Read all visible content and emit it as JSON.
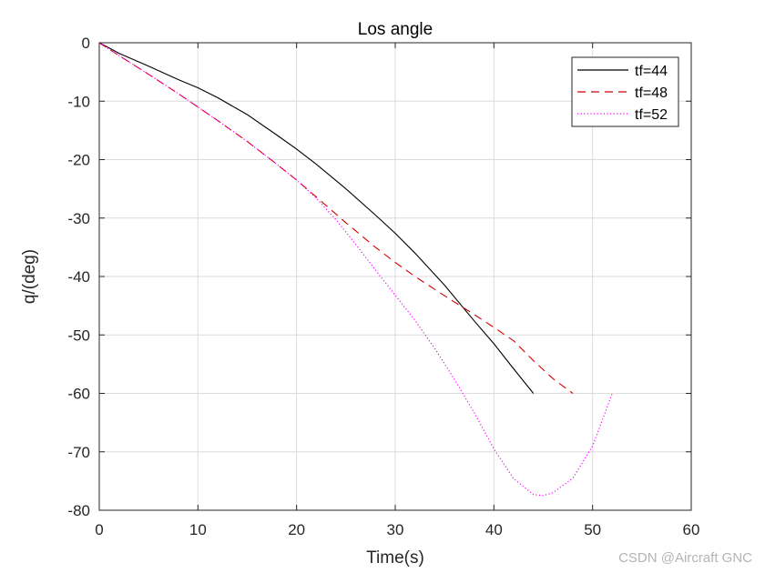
{
  "figure": {
    "title": "Los angle",
    "xlabel": "Time(s)",
    "ylabel": "q/(deg)",
    "watermark": "CSDN @Aircraft GNC"
  },
  "chart_data": {
    "type": "line",
    "title": "Los angle",
    "xlabel": "Time(s)",
    "ylabel": "q/(deg)",
    "xlim": [
      0,
      60
    ],
    "ylim": [
      -80,
      0
    ],
    "xticks": [
      0,
      10,
      20,
      30,
      40,
      50,
      60
    ],
    "yticks": [
      0,
      -10,
      -20,
      -30,
      -40,
      -50,
      -60,
      -70,
      -80
    ],
    "grid": true,
    "legend_position": "northeast",
    "series": [
      {
        "name": "tf=44",
        "color": "#000000",
        "style": "solid",
        "x": [
          0,
          2,
          5,
          8,
          10,
          12,
          15,
          18,
          20,
          22,
          25,
          28,
          30,
          32,
          35,
          38,
          40,
          42,
          44
        ],
        "y": [
          0,
          -1.8,
          -4.0,
          -6.3,
          -7.7,
          -9.4,
          -12.3,
          -15.8,
          -18.2,
          -20.8,
          -25.0,
          -29.5,
          -32.6,
          -36.0,
          -41.5,
          -47.6,
          -51.5,
          -55.8,
          -60.0
        ]
      },
      {
        "name": "tf=48",
        "color": "#d40000",
        "style": "dashed",
        "x": [
          0,
          2,
          5,
          8,
          10,
          12,
          15,
          18,
          20,
          22,
          25,
          28,
          30,
          32,
          35,
          38,
          40,
          42,
          44,
          46,
          48
        ],
        "y": [
          0,
          -2.2,
          -5.4,
          -8.7,
          -11.0,
          -13.3,
          -16.9,
          -20.8,
          -23.5,
          -26.4,
          -30.8,
          -35.0,
          -37.6,
          -40.0,
          -43.3,
          -46.5,
          -48.7,
          -51.0,
          -54.4,
          -57.5,
          -60.0
        ]
      },
      {
        "name": "tf=52",
        "color": "#ff00ff",
        "style": "dotted",
        "x": [
          0,
          2,
          5,
          8,
          10,
          12,
          15,
          18,
          20,
          22,
          24,
          26,
          28,
          30,
          32,
          34,
          36,
          38,
          40,
          42,
          44,
          45,
          46,
          48,
          50,
          52
        ],
        "y": [
          0,
          -2.2,
          -5.4,
          -8.7,
          -11.0,
          -13.3,
          -16.9,
          -20.8,
          -23.5,
          -26.6,
          -30.3,
          -34.5,
          -38.9,
          -43.2,
          -47.5,
          -52.3,
          -57.6,
          -63.3,
          -69.5,
          -74.6,
          -77.3,
          -77.5,
          -77.0,
          -74.5,
          -69.0,
          -60.0
        ]
      }
    ]
  }
}
